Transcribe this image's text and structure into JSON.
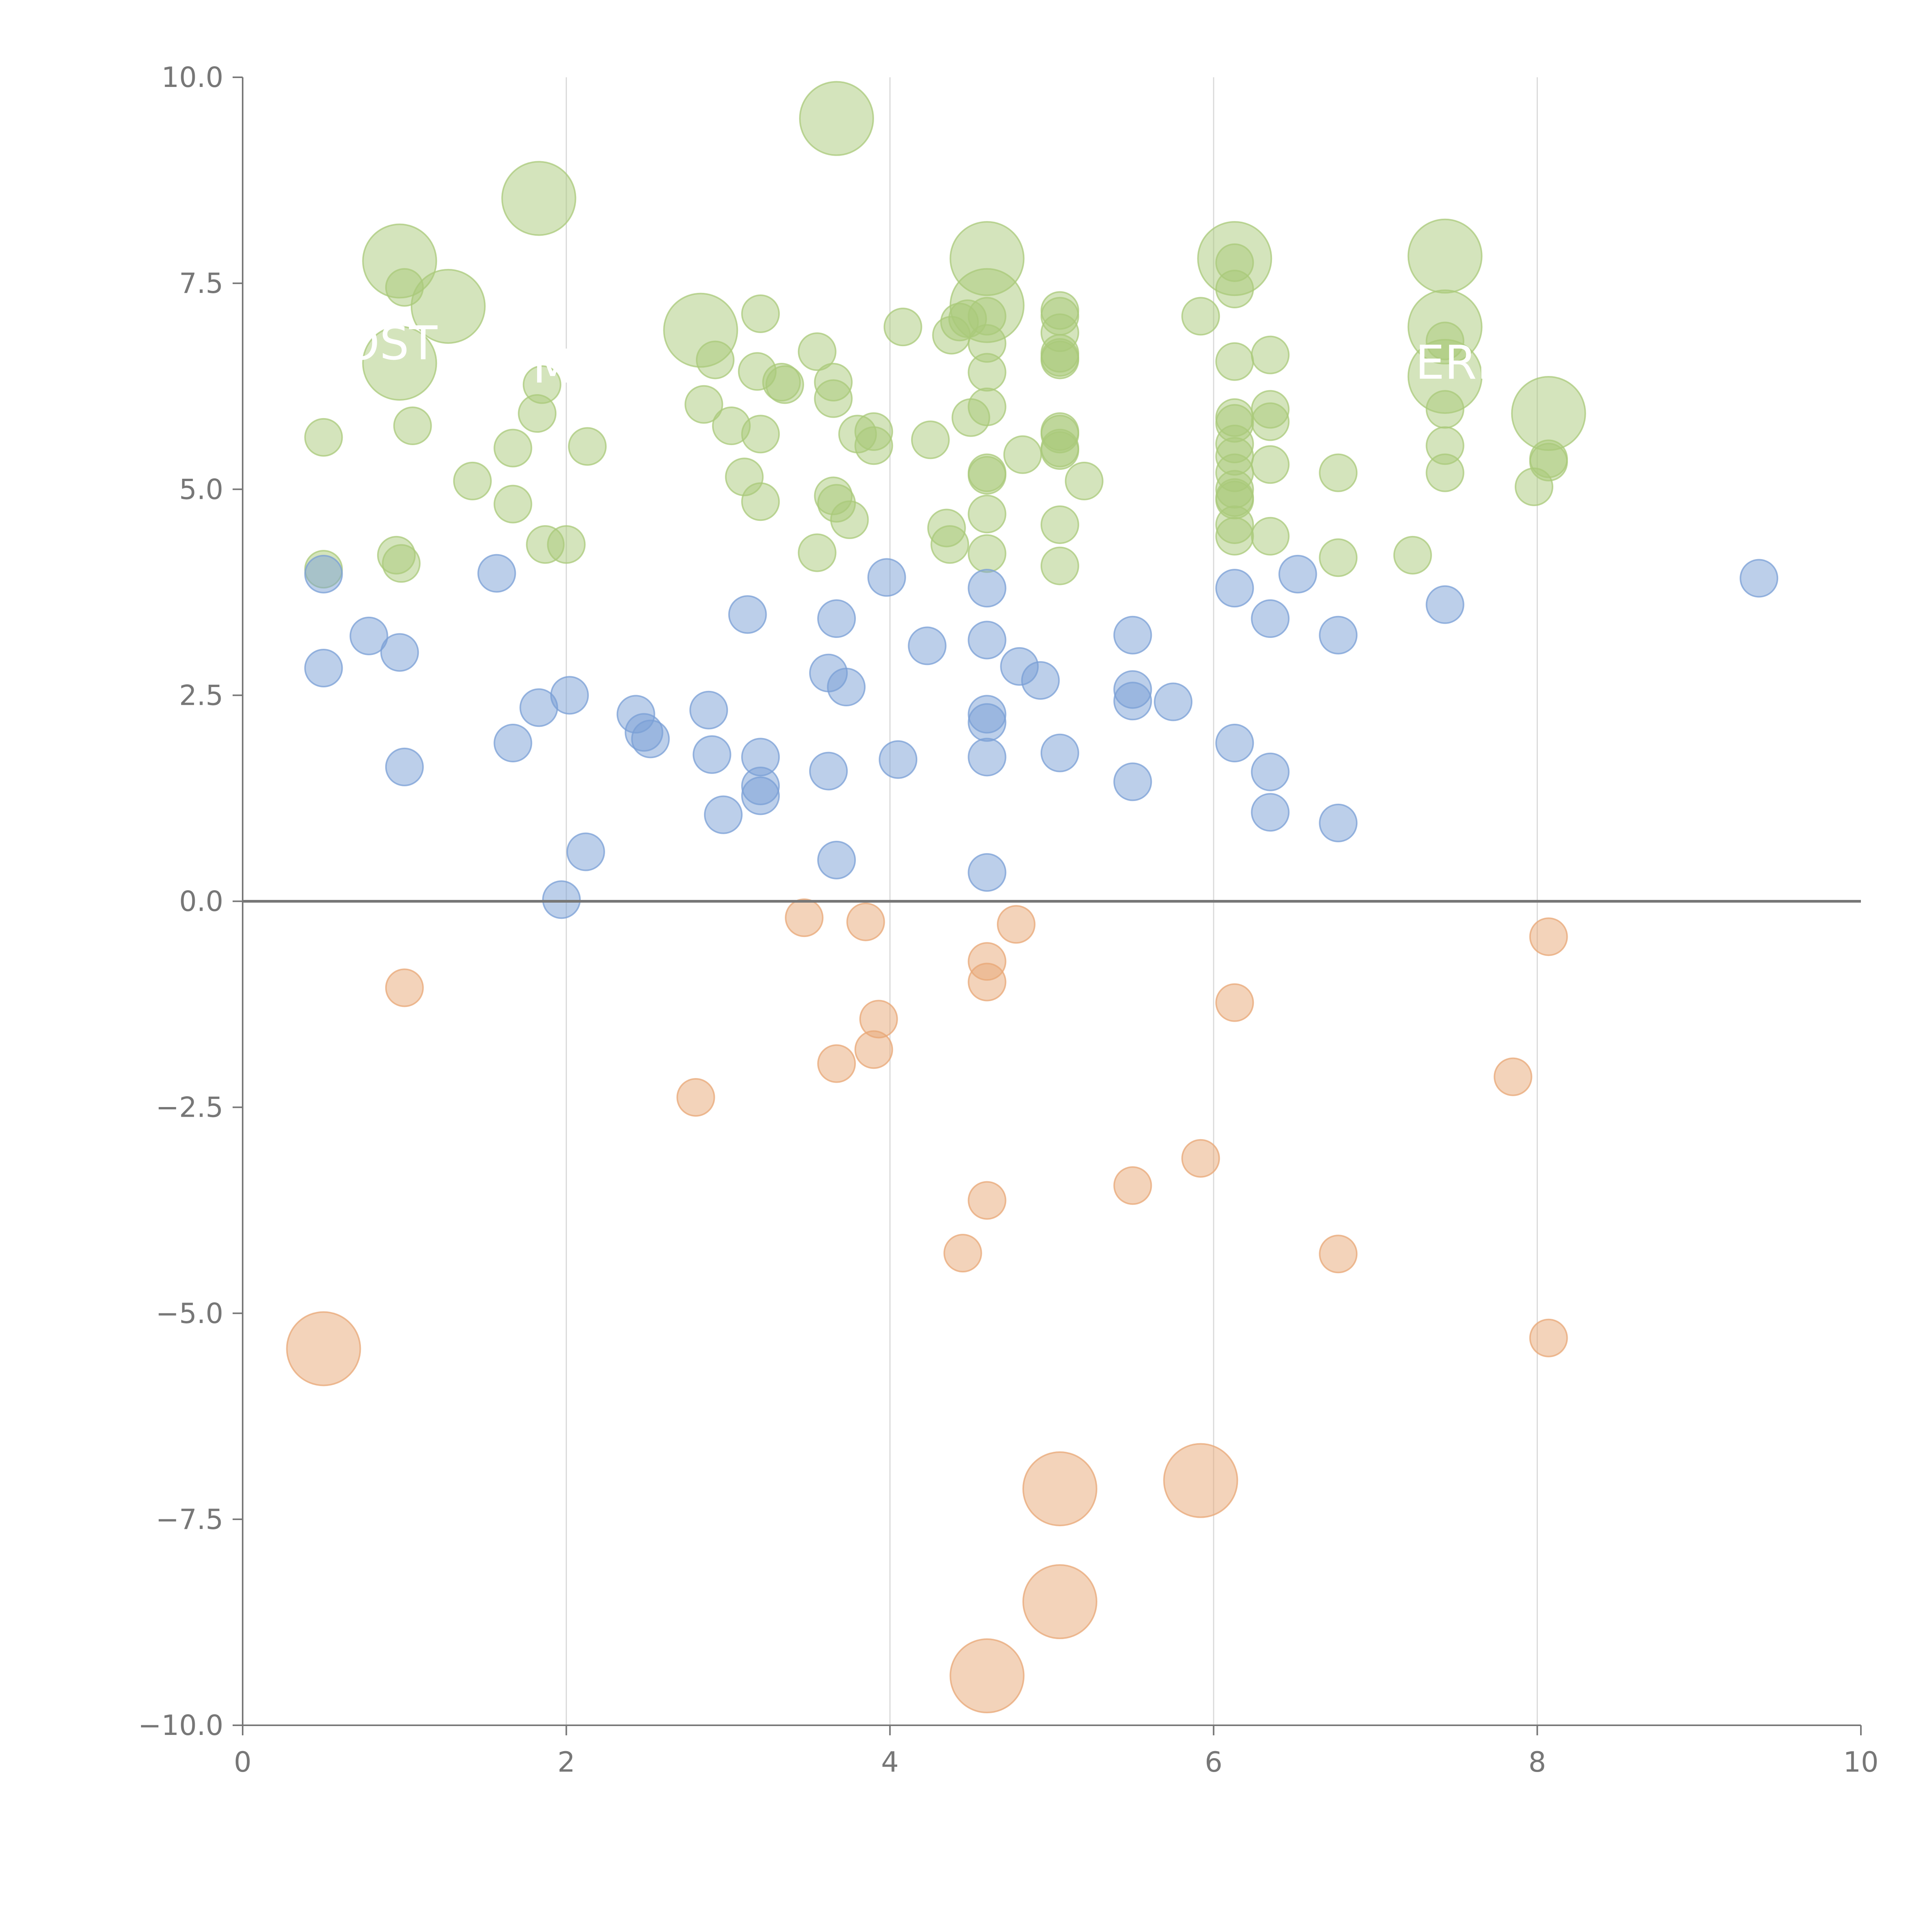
{
  "chart_data": {
    "type": "scatter",
    "subtype": "bubble",
    "title": "",
    "xlabel": "",
    "ylabel": "",
    "xlim": [
      0,
      10
    ],
    "ylim": [
      -10,
      10
    ],
    "x_ticks": [
      0,
      2,
      4,
      6,
      8,
      10
    ],
    "x_tick_labels": [
      "0",
      "2",
      "4",
      "6",
      "8",
      "10"
    ],
    "y_ticks": [
      -10,
      -7.5,
      -5,
      -2.5,
      0,
      2.5,
      5,
      7.5,
      10
    ],
    "y_tick_labels": [
      "−10.0",
      "−7.5",
      "−5.0",
      "−2.5",
      "0.0",
      "2.5",
      "5.0",
      "7.5",
      "10.0"
    ],
    "vertical_grid": true,
    "horizontal_grid": false,
    "zero_line": true,
    "legend": "none",
    "size_units": "relative bubble size (1 = smallest)",
    "series": [
      {
        "name": "green",
        "color": "#a9c97a",
        "points": [
          {
            "x": 0.5,
            "y": 5.63,
            "s": 1
          },
          {
            "x": 0.5,
            "y": 4.03,
            "s": 1
          },
          {
            "x": 0.95,
            "y": 4.2,
            "s": 1
          },
          {
            "x": 0.98,
            "y": 4.1,
            "s": 1
          },
          {
            "x": 1.0,
            "y": 7.45,
            "s": 1
          },
          {
            "x": 1.05,
            "y": 5.77,
            "s": 1
          },
          {
            "x": 1.42,
            "y": 5.1,
            "s": 1
          },
          {
            "x": 1.67,
            "y": 5.5,
            "s": 1
          },
          {
            "x": 1.67,
            "y": 4.82,
            "s": 1
          },
          {
            "x": 1.82,
            "y": 5.92,
            "s": 1
          },
          {
            "x": 1.85,
            "y": 6.27,
            "s": 1
          },
          {
            "x": 1.87,
            "y": 4.33,
            "s": 1
          },
          {
            "x": 2.0,
            "y": 4.33,
            "s": 1
          },
          {
            "x": 2.13,
            "y": 5.52,
            "s": 1
          },
          {
            "x": 2.85,
            "y": 6.03,
            "s": 1
          },
          {
            "x": 2.92,
            "y": 6.57,
            "s": 1
          },
          {
            "x": 3.02,
            "y": 5.77,
            "s": 1
          },
          {
            "x": 3.1,
            "y": 5.15,
            "s": 1
          },
          {
            "x": 3.2,
            "y": 7.13,
            "s": 1
          },
          {
            "x": 3.18,
            "y": 6.43,
            "s": 1
          },
          {
            "x": 3.2,
            "y": 5.67,
            "s": 1
          },
          {
            "x": 3.2,
            "y": 4.85,
            "s": 1
          },
          {
            "x": 3.33,
            "y": 6.3,
            "s": 1
          },
          {
            "x": 3.35,
            "y": 6.27,
            "s": 1
          },
          {
            "x": 3.55,
            "y": 6.67,
            "s": 1
          },
          {
            "x": 3.55,
            "y": 4.23,
            "s": 1
          },
          {
            "x": 3.65,
            "y": 6.3,
            "s": 1
          },
          {
            "x": 3.65,
            "y": 6.1,
            "s": 1
          },
          {
            "x": 3.65,
            "y": 4.92,
            "s": 1
          },
          {
            "x": 3.67,
            "y": 4.83,
            "s": 1
          },
          {
            "x": 3.75,
            "y": 4.63,
            "s": 1
          },
          {
            "x": 3.8,
            "y": 5.67,
            "s": 1
          },
          {
            "x": 3.9,
            "y": 5.7,
            "s": 1
          },
          {
            "x": 3.9,
            "y": 5.53,
            "s": 1
          },
          {
            "x": 4.08,
            "y": 6.97,
            "s": 1
          },
          {
            "x": 4.25,
            "y": 5.6,
            "s": 1
          },
          {
            "x": 4.35,
            "y": 4.53,
            "s": 1
          },
          {
            "x": 4.37,
            "y": 4.33,
            "s": 1
          },
          {
            "x": 4.38,
            "y": 6.87,
            "s": 1
          },
          {
            "x": 4.43,
            "y": 7.03,
            "s": 1
          },
          {
            "x": 4.48,
            "y": 7.07,
            "s": 1
          },
          {
            "x": 4.5,
            "y": 5.87,
            "s": 1
          },
          {
            "x": 4.6,
            "y": 7.1,
            "s": 1
          },
          {
            "x": 4.6,
            "y": 6.77,
            "s": 1
          },
          {
            "x": 4.6,
            "y": 6.42,
            "s": 1
          },
          {
            "x": 4.6,
            "y": 6.0,
            "s": 1
          },
          {
            "x": 4.6,
            "y": 5.2,
            "s": 1
          },
          {
            "x": 4.6,
            "y": 5.17,
            "s": 1
          },
          {
            "x": 4.6,
            "y": 4.7,
            "s": 1
          },
          {
            "x": 4.6,
            "y": 4.22,
            "s": 1
          },
          {
            "x": 4.82,
            "y": 5.42,
            "s": 1
          },
          {
            "x": 5.05,
            "y": 7.17,
            "s": 1
          },
          {
            "x": 5.05,
            "y": 7.1,
            "s": 1
          },
          {
            "x": 5.05,
            "y": 6.9,
            "s": 1
          },
          {
            "x": 5.05,
            "y": 6.65,
            "s": 1
          },
          {
            "x": 5.05,
            "y": 6.6,
            "s": 1
          },
          {
            "x": 5.05,
            "y": 6.57,
            "s": 1
          },
          {
            "x": 5.05,
            "y": 5.7,
            "s": 1
          },
          {
            "x": 5.05,
            "y": 5.67,
            "s": 1
          },
          {
            "x": 5.05,
            "y": 5.5,
            "s": 1
          },
          {
            "x": 5.05,
            "y": 5.47,
            "s": 1
          },
          {
            "x": 5.05,
            "y": 4.57,
            "s": 1
          },
          {
            "x": 5.05,
            "y": 4.07,
            "s": 1
          },
          {
            "x": 5.2,
            "y": 5.1,
            "s": 1
          },
          {
            "x": 5.92,
            "y": 7.1,
            "s": 1
          },
          {
            "x": 6.13,
            "y": 7.75,
            "s": 1
          },
          {
            "x": 6.13,
            "y": 7.43,
            "s": 1
          },
          {
            "x": 6.13,
            "y": 6.55,
            "s": 1
          },
          {
            "x": 6.13,
            "y": 5.87,
            "s": 1
          },
          {
            "x": 6.13,
            "y": 5.8,
            "s": 1
          },
          {
            "x": 6.13,
            "y": 5.55,
            "s": 1
          },
          {
            "x": 6.13,
            "y": 5.4,
            "s": 1
          },
          {
            "x": 6.13,
            "y": 5.2,
            "s": 1
          },
          {
            "x": 6.13,
            "y": 5.0,
            "s": 1
          },
          {
            "x": 6.13,
            "y": 4.9,
            "s": 1
          },
          {
            "x": 6.13,
            "y": 4.87,
            "s": 1
          },
          {
            "x": 6.13,
            "y": 4.57,
            "s": 1
          },
          {
            "x": 6.13,
            "y": 4.43,
            "s": 1
          },
          {
            "x": 6.35,
            "y": 6.63,
            "s": 1
          },
          {
            "x": 6.35,
            "y": 5.97,
            "s": 1
          },
          {
            "x": 6.35,
            "y": 5.82,
            "s": 1
          },
          {
            "x": 6.35,
            "y": 5.3,
            "s": 1
          },
          {
            "x": 6.35,
            "y": 4.43,
            "s": 1
          },
          {
            "x": 6.77,
            "y": 5.2,
            "s": 1
          },
          {
            "x": 6.77,
            "y": 4.17,
            "s": 1
          },
          {
            "x": 7.23,
            "y": 4.2,
            "s": 1
          },
          {
            "x": 7.43,
            "y": 6.8,
            "s": 1
          },
          {
            "x": 7.43,
            "y": 5.97,
            "s": 1
          },
          {
            "x": 7.43,
            "y": 5.53,
            "s": 1
          },
          {
            "x": 7.43,
            "y": 5.2,
            "s": 1
          },
          {
            "x": 7.98,
            "y": 5.03,
            "s": 1
          },
          {
            "x": 8.07,
            "y": 5.37,
            "s": 1
          },
          {
            "x": 8.07,
            "y": 5.33,
            "s": 1
          },
          {
            "x": 0.97,
            "y": 7.77,
            "s": 2
          },
          {
            "x": 1.27,
            "y": 7.22,
            "s": 2
          },
          {
            "x": 0.97,
            "y": 6.53,
            "s": 2
          },
          {
            "x": 1.83,
            "y": 8.53,
            "s": 2
          },
          {
            "x": 2.83,
            "y": 6.93,
            "s": 2
          },
          {
            "x": 3.67,
            "y": 9.5,
            "s": 2
          },
          {
            "x": 4.6,
            "y": 7.8,
            "s": 2
          },
          {
            "x": 4.6,
            "y": 7.23,
            "s": 2
          },
          {
            "x": 6.13,
            "y": 7.8,
            "s": 2
          },
          {
            "x": 7.43,
            "y": 7.83,
            "s": 2
          },
          {
            "x": 7.43,
            "y": 6.97,
            "s": 2
          },
          {
            "x": 7.43,
            "y": 6.37,
            "s": 2
          },
          {
            "x": 8.07,
            "y": 5.92,
            "s": 2
          }
        ]
      },
      {
        "name": "blue",
        "color": "#7a9fd6",
        "points": [
          {
            "x": 0.5,
            "y": 3.97,
            "s": 1
          },
          {
            "x": 0.5,
            "y": 2.83,
            "s": 1
          },
          {
            "x": 0.78,
            "y": 3.22,
            "s": 1
          },
          {
            "x": 0.97,
            "y": 3.02,
            "s": 1
          },
          {
            "x": 1.0,
            "y": 1.63,
            "s": 1
          },
          {
            "x": 1.57,
            "y": 3.98,
            "s": 1
          },
          {
            "x": 1.67,
            "y": 1.92,
            "s": 1
          },
          {
            "x": 1.83,
            "y": 2.35,
            "s": 1
          },
          {
            "x": 1.97,
            "y": 0.02,
            "s": 1
          },
          {
            "x": 2.02,
            "y": 2.5,
            "s": 1
          },
          {
            "x": 2.12,
            "y": 0.6,
            "s": 1
          },
          {
            "x": 2.43,
            "y": 2.27,
            "s": 1
          },
          {
            "x": 2.48,
            "y": 2.05,
            "s": 1
          },
          {
            "x": 2.52,
            "y": 1.97,
            "s": 1
          },
          {
            "x": 2.88,
            "y": 2.32,
            "s": 1
          },
          {
            "x": 2.9,
            "y": 1.78,
            "s": 1
          },
          {
            "x": 2.97,
            "y": 1.05,
            "s": 1
          },
          {
            "x": 3.12,
            "y": 3.48,
            "s": 1
          },
          {
            "x": 3.2,
            "y": 1.75,
            "s": 1
          },
          {
            "x": 3.2,
            "y": 1.4,
            "s": 1
          },
          {
            "x": 3.2,
            "y": 1.28,
            "s": 1
          },
          {
            "x": 3.62,
            "y": 1.58,
            "s": 1
          },
          {
            "x": 3.62,
            "y": 2.77,
            "s": 1
          },
          {
            "x": 3.67,
            "y": 3.43,
            "s": 1
          },
          {
            "x": 3.67,
            "y": 0.5,
            "s": 1
          },
          {
            "x": 3.73,
            "y": 2.6,
            "s": 1
          },
          {
            "x": 3.98,
            "y": 3.93,
            "s": 1
          },
          {
            "x": 4.05,
            "y": 1.72,
            "s": 1
          },
          {
            "x": 4.23,
            "y": 3.1,
            "s": 1
          },
          {
            "x": 4.6,
            "y": 3.8,
            "s": 1
          },
          {
            "x": 4.6,
            "y": 3.17,
            "s": 1
          },
          {
            "x": 4.6,
            "y": 2.27,
            "s": 1
          },
          {
            "x": 4.6,
            "y": 2.17,
            "s": 1
          },
          {
            "x": 4.6,
            "y": 1.75,
            "s": 1
          },
          {
            "x": 4.6,
            "y": 0.35,
            "s": 1
          },
          {
            "x": 4.8,
            "y": 2.85,
            "s": 1
          },
          {
            "x": 4.93,
            "y": 2.68,
            "s": 1
          },
          {
            "x": 5.05,
            "y": 1.8,
            "s": 1
          },
          {
            "x": 5.5,
            "y": 3.23,
            "s": 1
          },
          {
            "x": 5.5,
            "y": 2.57,
            "s": 1
          },
          {
            "x": 5.5,
            "y": 2.43,
            "s": 1
          },
          {
            "x": 5.5,
            "y": 1.45,
            "s": 1
          },
          {
            "x": 5.75,
            "y": 2.42,
            "s": 1
          },
          {
            "x": 6.13,
            "y": 3.8,
            "s": 1
          },
          {
            "x": 6.13,
            "y": 1.92,
            "s": 1
          },
          {
            "x": 6.35,
            "y": 3.43,
            "s": 1
          },
          {
            "x": 6.35,
            "y": 1.57,
            "s": 1
          },
          {
            "x": 6.35,
            "y": 1.08,
            "s": 1
          },
          {
            "x": 6.52,
            "y": 3.97,
            "s": 1
          },
          {
            "x": 6.77,
            "y": 3.23,
            "s": 1
          },
          {
            "x": 6.77,
            "y": 0.95,
            "s": 1
          },
          {
            "x": 7.43,
            "y": 3.6,
            "s": 1
          },
          {
            "x": 9.37,
            "y": 3.92,
            "s": 1
          }
        ]
      },
      {
        "name": "orange",
        "color": "#e8a776",
        "points": [
          {
            "x": 1.0,
            "y": -1.05,
            "s": 1
          },
          {
            "x": 2.8,
            "y": -2.38,
            "s": 1
          },
          {
            "x": 3.47,
            "y": -0.2,
            "s": 1
          },
          {
            "x": 3.67,
            "y": -1.97,
            "s": 1
          },
          {
            "x": 3.85,
            "y": -0.25,
            "s": 1
          },
          {
            "x": 3.9,
            "y": -1.8,
            "s": 1
          },
          {
            "x": 3.93,
            "y": -1.43,
            "s": 1
          },
          {
            "x": 4.45,
            "y": -4.27,
            "s": 1
          },
          {
            "x": 4.6,
            "y": -0.73,
            "s": 1
          },
          {
            "x": 4.6,
            "y": -0.98,
            "s": 1
          },
          {
            "x": 4.6,
            "y": -3.63,
            "s": 1
          },
          {
            "x": 4.78,
            "y": -0.28,
            "s": 1
          },
          {
            "x": 5.5,
            "y": -3.45,
            "s": 1
          },
          {
            "x": 5.92,
            "y": -3.12,
            "s": 1
          },
          {
            "x": 6.13,
            "y": -1.23,
            "s": 1
          },
          {
            "x": 6.77,
            "y": -4.28,
            "s": 1
          },
          {
            "x": 7.85,
            "y": -2.13,
            "s": 1
          },
          {
            "x": 8.07,
            "y": -0.43,
            "s": 1
          },
          {
            "x": 8.07,
            "y": -5.3,
            "s": 1
          },
          {
            "x": 0.5,
            "y": -5.43,
            "s": 2
          },
          {
            "x": 5.05,
            "y": -7.13,
            "s": 2
          },
          {
            "x": 5.92,
            "y": -7.03,
            "s": 2
          },
          {
            "x": 5.05,
            "y": -8.5,
            "s": 2
          },
          {
            "x": 4.6,
            "y": -9.4,
            "s": 2
          }
        ]
      }
    ],
    "annotations": [
      "OST",
      "M",
      "ERI"
    ]
  }
}
